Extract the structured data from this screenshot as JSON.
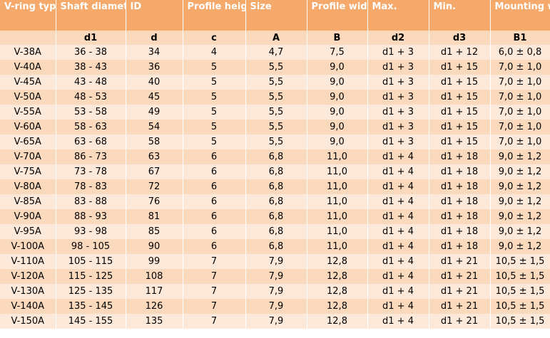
{
  "headers": [
    "V-ring type",
    "Shaft diameter",
    "ID",
    "Profile height",
    "Size",
    "Profile width",
    "Max.",
    "Min.",
    "Mounting width"
  ],
  "symbols": [
    "",
    "d1",
    "d",
    "c",
    "A",
    "B",
    "d2",
    "d3",
    "B1"
  ],
  "rows": [
    [
      "V-38A",
      "36 - 38",
      "34",
      "4",
      "4,7",
      "7,5",
      "d1 + 3",
      "d1 + 12",
      "6,0 ± 0,8"
    ],
    [
      "V-40A",
      "38 - 43",
      "36",
      "5",
      "5,5",
      "9,0",
      "d1 + 3",
      "d1 + 15",
      "7,0 ± 1,0"
    ],
    [
      "V-45A",
      "43 - 48",
      "40",
      "5",
      "5,5",
      "9,0",
      "d1 + 3",
      "d1 + 15",
      "7,0 ± 1,0"
    ],
    [
      "V-50A",
      "48 - 53",
      "45",
      "5",
      "5,5",
      "9,0",
      "d1 + 3",
      "d1 + 15",
      "7,0 ± 1,0"
    ],
    [
      "V-55A",
      "53 - 58",
      "49",
      "5",
      "5,5",
      "9,0",
      "d1 + 3",
      "d1 + 15",
      "7,0 ± 1,0"
    ],
    [
      "V-60A",
      "58 - 63",
      "54",
      "5",
      "5,5",
      "9,0",
      "d1 + 3",
      "d1 + 15",
      "7,0 ± 1,0"
    ],
    [
      "V-65A",
      "63 - 68",
      "58",
      "5",
      "5,5",
      "9,0",
      "d1 + 3",
      "d1 + 15",
      "7,0 ± 1,0"
    ],
    [
      "V-70A",
      "86 - 73",
      "63",
      "6",
      "6,8",
      "11,0",
      "d1 + 4",
      "d1 + 18",
      "9,0 ± 1,2"
    ],
    [
      "V-75A",
      "73 - 78",
      "67",
      "6",
      "6,8",
      "11,0",
      "d1 + 4",
      "d1 + 18",
      "9,0 ± 1,2"
    ],
    [
      "V-80A",
      "78 - 83",
      "72",
      "6",
      "6,8",
      "11,0",
      "d1 + 4",
      "d1 + 18",
      "9,0 ± 1,2"
    ],
    [
      "V-85A",
      "83 - 88",
      "76",
      "6",
      "6,8",
      "11,0",
      "d1 + 4",
      "d1 + 18",
      "9,0 ± 1,2"
    ],
    [
      "V-90A",
      "88 - 93",
      "81",
      "6",
      "6,8",
      "11,0",
      "d1 + 4",
      "d1 + 18",
      "9,0 ± 1,2"
    ],
    [
      "V-95A",
      "93 - 98",
      "85",
      "6",
      "6,8",
      "11,0",
      "d1 + 4",
      "d1 + 18",
      "9,0 ± 1,2"
    ],
    [
      "V-100A",
      "98 - 105",
      "90",
      "6",
      "6,8",
      "11,0",
      "d1 + 4",
      "d1 + 18",
      "9,0 ± 1,2"
    ],
    [
      "V-110A",
      "105 - 115",
      "99",
      "7",
      "7,9",
      "12,8",
      "d1 + 4",
      "d1 + 21",
      "10,5 ± 1,5"
    ],
    [
      "V-120A",
      "115 - 125",
      "108",
      "7",
      "7,9",
      "12,8",
      "d1 + 4",
      "d1 + 21",
      "10,5 ± 1,5"
    ],
    [
      "V-130A",
      "125 - 135",
      "117",
      "7",
      "7,9",
      "12,8",
      "d1 + 4",
      "d1 + 21",
      "10,5 ± 1,5"
    ],
    [
      "V-140A",
      "135 - 145",
      "126",
      "7",
      "7,9",
      "12,8",
      "d1 + 4",
      "d1 + 21",
      "10,5 ± 1,5"
    ],
    [
      "V-150A",
      "145 - 155",
      "135",
      "7",
      "7,9",
      "12,8",
      "d1 + 4",
      "d1 + 21",
      "10,5 ± 1,5"
    ]
  ]
}
